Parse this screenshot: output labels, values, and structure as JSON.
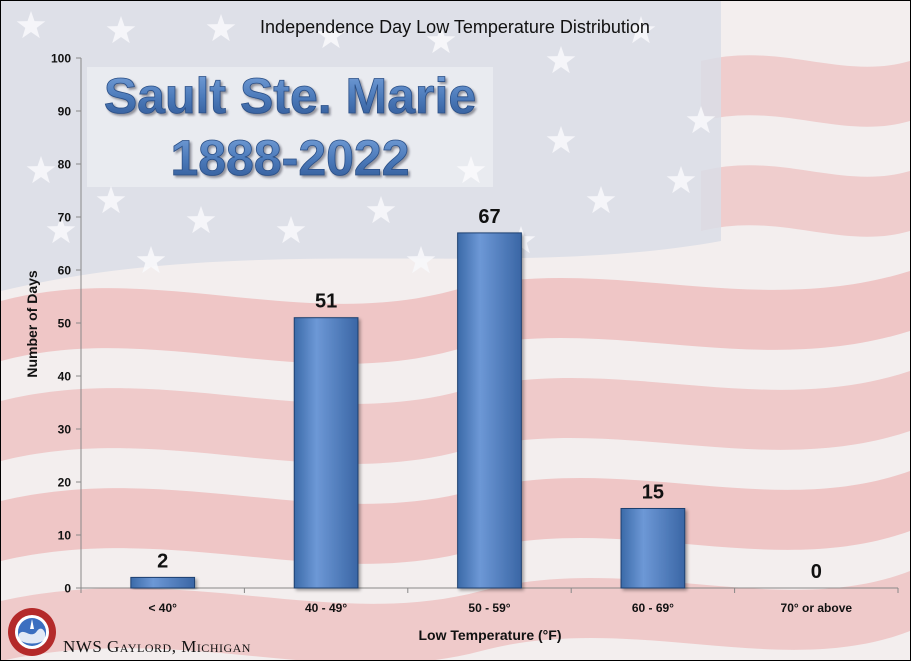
{
  "chart_data": {
    "type": "bar",
    "title": "Independence Day Low Temperature Distribution",
    "overlay_title": [
      "Sault Ste. Marie",
      "1888-2022"
    ],
    "xlabel": "Low Temperature (°F)",
    "ylabel": "Number of Days",
    "categories": [
      "< 40°",
      "40 - 49°",
      "50 - 59°",
      "60 - 69°",
      "70° or above"
    ],
    "values": [
      2,
      51,
      67,
      15,
      0
    ],
    "ylim": [
      0,
      100
    ],
    "yticks": [
      0,
      10,
      20,
      30,
      40,
      50,
      60,
      70,
      80,
      90,
      100
    ],
    "grid": false,
    "legend": "none",
    "colors": {
      "bar": "#4f81bd",
      "bar_light": "#7aa3db",
      "bar_dark": "#2e568f",
      "overlay_text": "#4a78b8"
    }
  },
  "footer": {
    "credit": "NWS Gaylord, Michigan"
  },
  "logo": {
    "icon": "nws-seal-icon"
  }
}
